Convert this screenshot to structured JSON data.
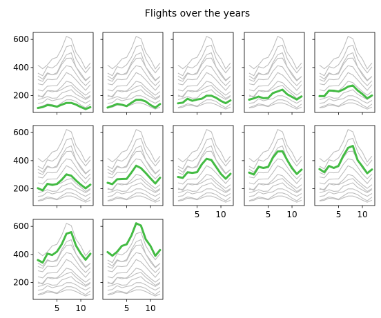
{
  "title": "Flights over the years",
  "chart_data": {
    "type": "line",
    "layout": "small-multiples",
    "title": "Flights over the years",
    "x": [
      1,
      2,
      3,
      4,
      5,
      6,
      7,
      8,
      9,
      10,
      11,
      12
    ],
    "xlim": [
      0,
      12.6
    ],
    "ylim": [
      80,
      650
    ],
    "xticks": [
      5,
      10
    ],
    "yticks": [
      200,
      400,
      600
    ],
    "grid": false,
    "legend": "none",
    "colors": {
      "highlight": "#44bb44",
      "background": "#bdbdbd"
    },
    "series": [
      {
        "values": [
          112,
          118,
          132,
          129,
          121,
          135,
          148,
          148,
          136,
          119,
          104,
          118
        ]
      },
      {
        "values": [
          115,
          126,
          141,
          135,
          125,
          149,
          170,
          170,
          158,
          133,
          114,
          140
        ]
      },
      {
        "values": [
          145,
          150,
          178,
          163,
          172,
          178,
          199,
          199,
          184,
          162,
          146,
          166
        ]
      },
      {
        "values": [
          171,
          180,
          193,
          181,
          183,
          218,
          230,
          242,
          209,
          191,
          172,
          194
        ]
      },
      {
        "values": [
          196,
          196,
          236,
          235,
          229,
          243,
          264,
          272,
          237,
          211,
          180,
          201
        ]
      },
      {
        "values": [
          204,
          188,
          235,
          227,
          234,
          264,
          302,
          293,
          259,
          229,
          203,
          229
        ]
      },
      {
        "values": [
          242,
          233,
          267,
          269,
          270,
          315,
          364,
          347,
          312,
          274,
          237,
          278
        ]
      },
      {
        "values": [
          284,
          277,
          317,
          313,
          318,
          374,
          413,
          405,
          355,
          306,
          271,
          306
        ]
      },
      {
        "values": [
          315,
          301,
          356,
          348,
          355,
          422,
          465,
          467,
          404,
          347,
          305,
          336
        ]
      },
      {
        "values": [
          340,
          318,
          362,
          348,
          363,
          435,
          491,
          505,
          404,
          359,
          310,
          337
        ]
      },
      {
        "values": [
          360,
          342,
          406,
          396,
          420,
          472,
          548,
          559,
          463,
          407,
          362,
          405
        ]
      },
      {
        "values": [
          417,
          391,
          419,
          461,
          472,
          535,
          622,
          606,
          508,
          461,
          390,
          432
        ]
      }
    ]
  }
}
